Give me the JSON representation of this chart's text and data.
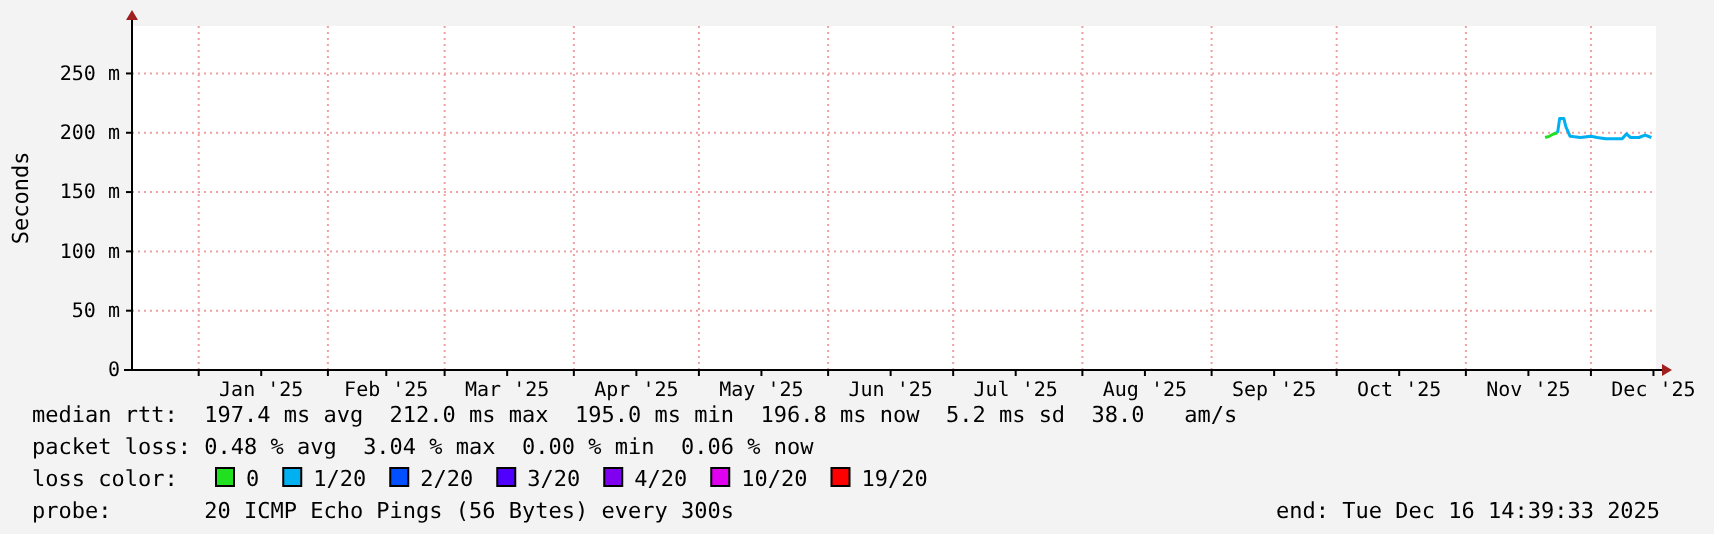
{
  "chart_data": {
    "type": "line",
    "ylabel": "Seconds",
    "legend_title": "loss color:",
    "legend": "bottom",
    "grid": true,
    "marker": "none",
    "line_style": "solid",
    "xlim": [
      "2024-12-16",
      "2025-12-16T14:39"
    ],
    "xticks": [
      {
        "value": "2025-01-01",
        "label": null
      },
      {
        "value": "2025-01-16",
        "label": "Jan '25"
      },
      {
        "value": "2025-02-01",
        "label": null
      },
      {
        "value": "2025-02-15",
        "label": "Feb '25"
      },
      {
        "value": "2025-03-01",
        "label": null
      },
      {
        "value": "2025-03-16",
        "label": "Mar '25"
      },
      {
        "value": "2025-04-01",
        "label": null
      },
      {
        "value": "2025-04-16",
        "label": "Apr '25"
      },
      {
        "value": "2025-05-01",
        "label": null
      },
      {
        "value": "2025-05-16",
        "label": "May '25"
      },
      {
        "value": "2025-06-01",
        "label": null
      },
      {
        "value": "2025-06-16",
        "label": "Jun '25"
      },
      {
        "value": "2025-07-01",
        "label": null
      },
      {
        "value": "2025-07-16",
        "label": "Jul '25"
      },
      {
        "value": "2025-08-01",
        "label": null
      },
      {
        "value": "2025-08-16",
        "label": "Aug '25"
      },
      {
        "value": "2025-09-01",
        "label": null
      },
      {
        "value": "2025-09-16",
        "label": "Sep '25"
      },
      {
        "value": "2025-10-01",
        "label": null
      },
      {
        "value": "2025-10-16",
        "label": "Oct '25"
      },
      {
        "value": "2025-11-01",
        "label": null
      },
      {
        "value": "2025-11-16",
        "label": "Nov '25"
      },
      {
        "value": "2025-12-01",
        "label": null
      },
      {
        "value": "2025-12-16",
        "label": "Dec '25"
      }
    ],
    "ylim": [
      0,
      290
    ],
    "yticks": [
      0,
      {
        "value": 50,
        "label": "50 m"
      },
      {
        "value": 100,
        "label": "100 m"
      },
      {
        "value": 150,
        "label": "150 m"
      },
      {
        "value": 200,
        "label": "200 m"
      },
      {
        "value": 250,
        "label": "250 m"
      }
    ],
    "series": [
      {
        "name": "0",
        "color": "#20e020",
        "x": [
          "2025-11-20",
          "2025-11-21",
          "2025-11-22",
          "2025-11-23"
        ],
        "values": [
          196,
          197,
          199,
          200
        ]
      },
      {
        "name": "1/20",
        "color": "#00b0f0",
        "x": [
          "2025-11-23",
          "2025-11-23T12:00",
          "2025-11-24T12:00",
          "2025-11-25",
          "2025-11-26",
          "2025-11-28T12:00",
          "2025-12-01",
          "2025-12-02T12:00",
          "2025-12-04T12:00",
          "2025-12-06T12:00",
          "2025-12-08T12:00",
          "2025-12-09T12:00",
          "2025-12-10T12:00",
          "2025-12-12T12:00",
          "2025-12-14",
          "2025-12-15T12:00"
        ],
        "values": [
          200,
          212,
          212,
          205,
          197,
          196,
          197,
          196,
          195,
          195,
          195,
          199,
          196,
          196,
          198,
          196
        ]
      },
      {
        "name": "2/20",
        "color": "#0050ff"
      },
      {
        "name": "3/20",
        "color": "#5000ff"
      },
      {
        "name": "4/20",
        "color": "#8000f0"
      },
      {
        "name": "10/20",
        "color": "#e000f0"
      },
      {
        "name": "19/20",
        "color": "#ff0000"
      }
    ],
    "annotations": [
      "median rtt:  197.4 ms avg  212.0 ms max  195.0 ms min  196.8 ms now  5.2 ms sd  38.0   am/s",
      "packet loss: 0.48 % avg  3.04 % max  0.00 % min  0.06 % now",
      "probe:       20 ICMP Echo Pings (56 Bytes) every 300s",
      "end: Tue Dec 16 14:39:33 2025"
    ]
  }
}
